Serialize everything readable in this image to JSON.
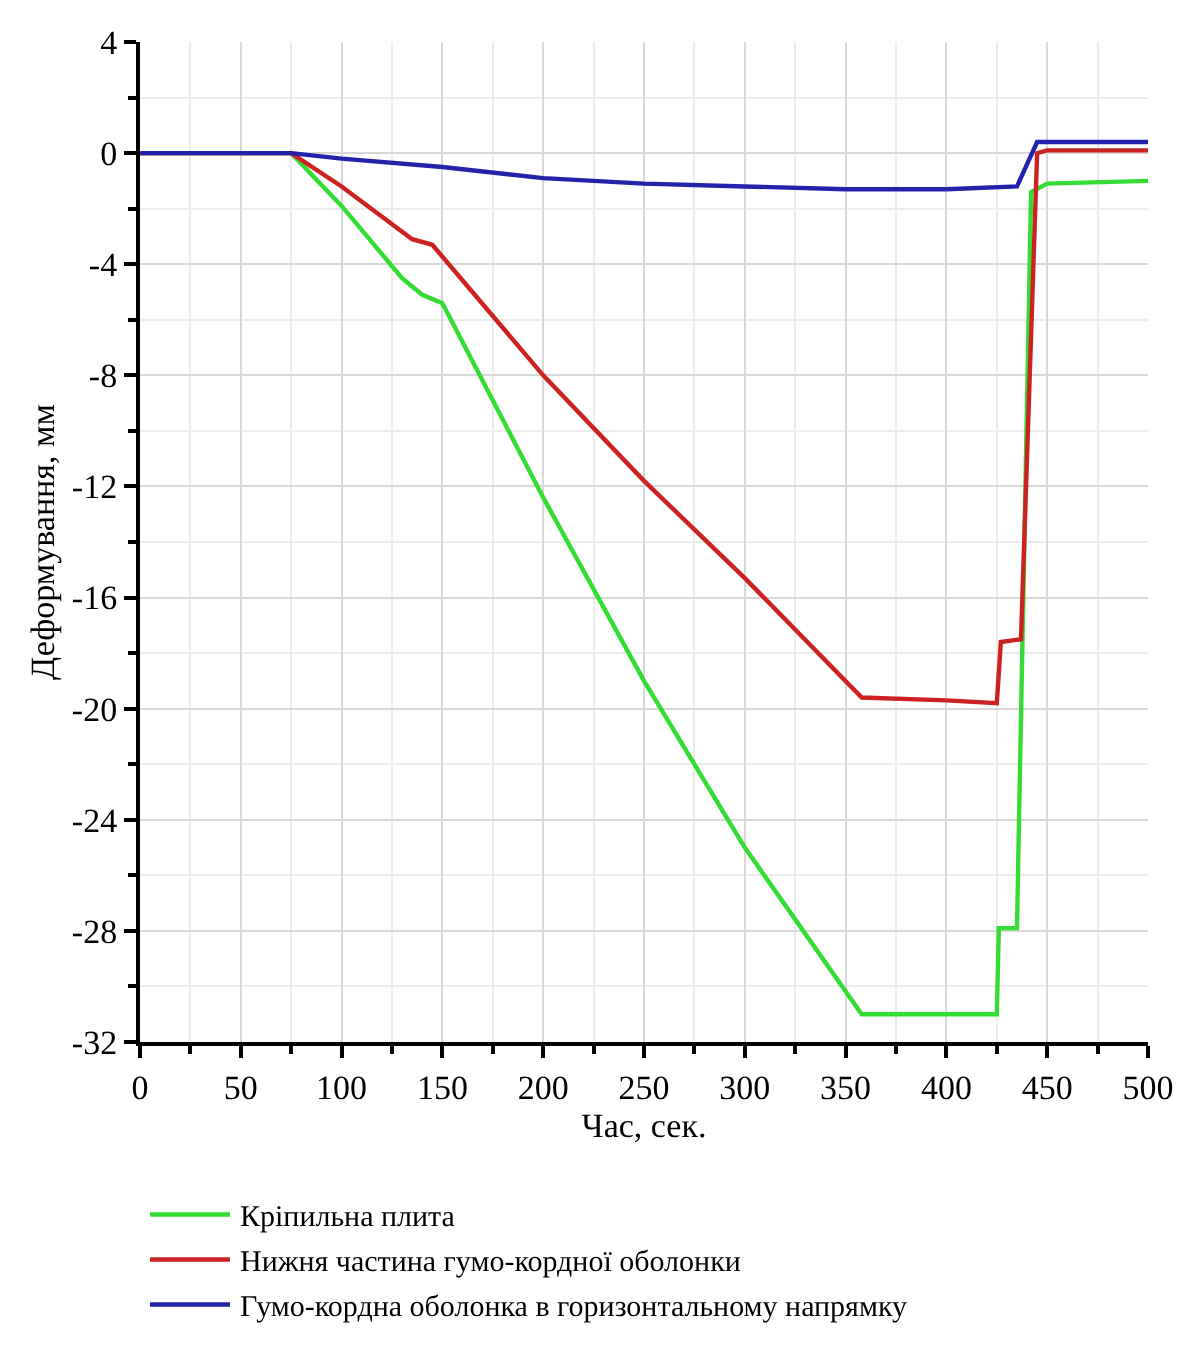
{
  "chart_data": {
    "type": "line",
    "xlabel": "Час, сек.",
    "ylabel": "Деформування, мм",
    "xlim": [
      0,
      500
    ],
    "xticks": [
      0,
      50,
      100,
      150,
      200,
      250,
      300,
      350,
      400,
      450,
      500
    ],
    "ylim": [
      -32,
      4
    ],
    "yticks": [
      -32,
      -28,
      -24,
      -20,
      -16,
      -12,
      -8,
      -4,
      0,
      4
    ],
    "grid": true,
    "legend": "bottom",
    "line_style": "solid",
    "series": [
      {
        "name": "Кріпильна плита",
        "color": "#33dd33",
        "x": [
          0,
          75,
          100,
          130,
          140,
          150,
          200,
          250,
          300,
          358,
          400,
          425,
          426,
          435,
          442,
          450,
          500
        ],
        "values": [
          0,
          0,
          -1.9,
          -4.5,
          -5.1,
          -5.4,
          -12.4,
          -19.0,
          -25.0,
          -31.0,
          -31.0,
          -31.0,
          -27.9,
          -27.9,
          -1.4,
          -1.1,
          -1.0
        ]
      },
      {
        "name": "Нижня частина гумо-кордної оболонки",
        "color": "#cc2222",
        "x": [
          0,
          75,
          100,
          135,
          145,
          200,
          250,
          300,
          358,
          400,
          425,
          427,
          437,
          445,
          450,
          500
        ],
        "values": [
          0,
          0,
          -1.2,
          -3.1,
          -3.3,
          -8.0,
          -11.8,
          -15.3,
          -19.6,
          -19.7,
          -19.8,
          -17.6,
          -17.5,
          0.0,
          0.1,
          0.1
        ]
      },
      {
        "name": "Гумо-кордна оболонка в горизонтальному напрямку",
        "color": "#2222aa",
        "x": [
          0,
          75,
          100,
          150,
          200,
          250,
          300,
          350,
          400,
          435,
          445,
          500
        ],
        "values": [
          0,
          0,
          -0.2,
          -0.5,
          -0.9,
          -1.1,
          -1.2,
          -1.3,
          -1.3,
          -1.2,
          0.4,
          0.4
        ]
      }
    ]
  }
}
